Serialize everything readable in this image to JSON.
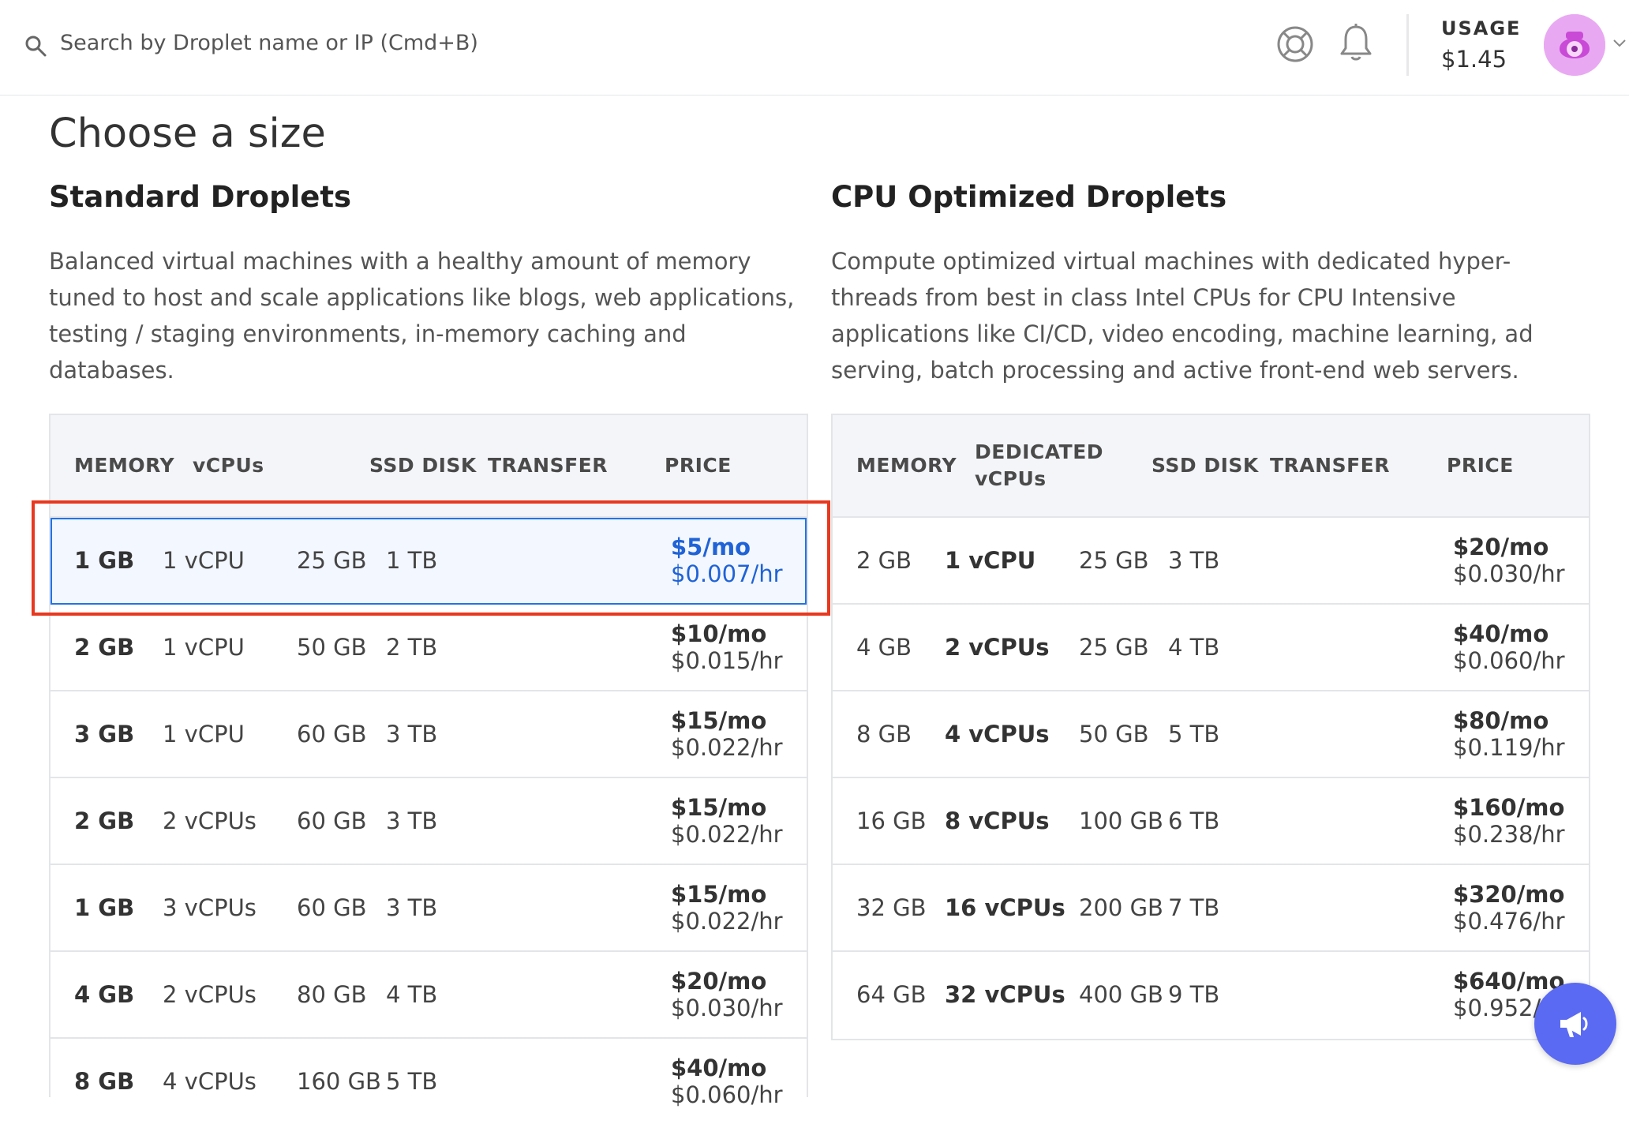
{
  "topbar": {
    "search_placeholder": "Search by Droplet name or IP (Cmd+B)",
    "usage_label": "USAGE",
    "usage_value": "$1.45",
    "icons": [
      "search-icon",
      "help-icon",
      "bell-icon",
      "avatar",
      "chevron-down-icon"
    ]
  },
  "page": {
    "title": "Choose a size"
  },
  "standard": {
    "title": "Standard Droplets",
    "description": "Balanced virtual machines with a healthy amount of memory tuned to host and scale applications like blogs, web applications, testing / staging environments, in-memory caching and databases.",
    "headers": {
      "memory": "MEMORY",
      "vcpus": "vCPUs",
      "disk": "SSD DISK",
      "transfer": "TRANSFER",
      "price": "PRICE"
    },
    "rows": [
      {
        "memory": "1 GB",
        "vcpus": "1 vCPU",
        "disk": "25 GB",
        "transfer": "1 TB",
        "price_mo": "$5/mo",
        "price_hr": "$0.007/hr"
      },
      {
        "memory": "2 GB",
        "vcpus": "1 vCPU",
        "disk": "50 GB",
        "transfer": "2 TB",
        "price_mo": "$10/mo",
        "price_hr": "$0.015/hr"
      },
      {
        "memory": "3 GB",
        "vcpus": "1 vCPU",
        "disk": "60 GB",
        "transfer": "3 TB",
        "price_mo": "$15/mo",
        "price_hr": "$0.022/hr"
      },
      {
        "memory": "2 GB",
        "vcpus": "2 vCPUs",
        "disk": "60 GB",
        "transfer": "3 TB",
        "price_mo": "$15/mo",
        "price_hr": "$0.022/hr"
      },
      {
        "memory": "1 GB",
        "vcpus": "3 vCPUs",
        "disk": "60 GB",
        "transfer": "3 TB",
        "price_mo": "$15/mo",
        "price_hr": "$0.022/hr"
      },
      {
        "memory": "4 GB",
        "vcpus": "2 vCPUs",
        "disk": "80 GB",
        "transfer": "4 TB",
        "price_mo": "$20/mo",
        "price_hr": "$0.030/hr"
      },
      {
        "memory": "8 GB",
        "vcpus": "4 vCPUs",
        "disk": "160 GB",
        "transfer": "5 TB",
        "price_mo": "$40/mo",
        "price_hr": "$0.060/hr"
      }
    ]
  },
  "cpu": {
    "title": "CPU Optimized Droplets",
    "description": "Compute optimized virtual machines with dedicated hyper-threads from best in class Intel CPUs for CPU Intensive applications like CI/CD, video encoding, machine learning, ad serving, batch processing and active front-end web servers.",
    "headers": {
      "memory": "MEMORY",
      "vcpus": "DEDICATED vCPUs",
      "disk": "SSD DISK",
      "transfer": "TRANSFER",
      "price": "PRICE"
    },
    "rows": [
      {
        "memory": "2 GB",
        "vcpus": "1 vCPU",
        "disk": "25 GB",
        "transfer": "3 TB",
        "price_mo": "$20/mo",
        "price_hr": "$0.030/hr"
      },
      {
        "memory": "4 GB",
        "vcpus": "2 vCPUs",
        "disk": "25 GB",
        "transfer": "4 TB",
        "price_mo": "$40/mo",
        "price_hr": "$0.060/hr"
      },
      {
        "memory": "8 GB",
        "vcpus": "4 vCPUs",
        "disk": "50 GB",
        "transfer": "5 TB",
        "price_mo": "$80/mo",
        "price_hr": "$0.119/hr"
      },
      {
        "memory": "16 GB",
        "vcpus": "8 vCPUs",
        "disk": "100 GB",
        "transfer": "6 TB",
        "price_mo": "$160/mo",
        "price_hr": "$0.238/hr"
      },
      {
        "memory": "32 GB",
        "vcpus": "16 vCPUs",
        "disk": "200 GB",
        "transfer": "7 TB",
        "price_mo": "$320/mo",
        "price_hr": "$0.476/hr"
      },
      {
        "memory": "64 GB",
        "vcpus": "32 vCPUs",
        "disk": "400 GB",
        "transfer": "9 TB",
        "price_mo": "$640/mo",
        "price_hr": "$0.952/hr"
      }
    ]
  },
  "colors": {
    "accent_blue": "#1f63d6",
    "highlight_red": "#e8381f",
    "fab_purple": "#5b6af2"
  },
  "fab": {
    "icon": "megaphone-icon"
  }
}
